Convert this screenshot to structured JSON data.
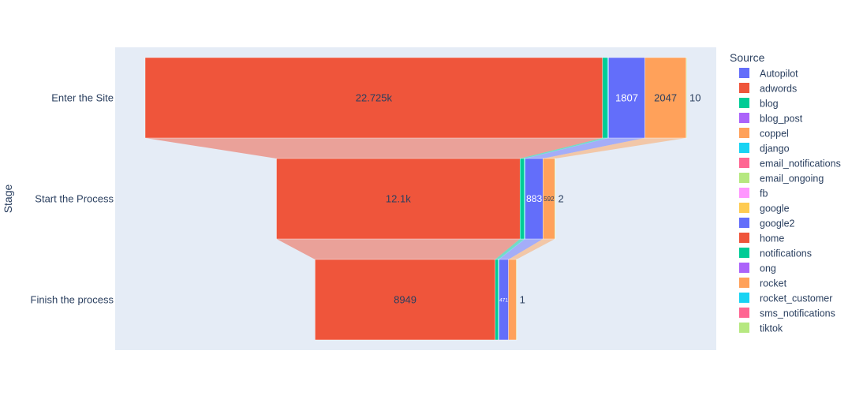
{
  "chart_data": {
    "type": "funnel",
    "title": "",
    "ylabel": "Stage",
    "stages": [
      "Enter the Site",
      "Start the Process",
      "Finish the process"
    ],
    "legend": {
      "title": "Source",
      "placement": "right",
      "entries": [
        {
          "name": "Autopilot",
          "color": "#636efa"
        },
        {
          "name": "adwords",
          "color": "#EF553B"
        },
        {
          "name": "blog",
          "color": "#00cc96"
        },
        {
          "name": "blog_post",
          "color": "#ab63fa"
        },
        {
          "name": "coppel",
          "color": "#FFA15A"
        },
        {
          "name": "django",
          "color": "#19d3f3"
        },
        {
          "name": "email_notifications",
          "color": "#FF6692"
        },
        {
          "name": "email_ongoing",
          "color": "#B6E880"
        },
        {
          "name": "fb",
          "color": "#FF97FF"
        },
        {
          "name": "google",
          "color": "#FECB52"
        },
        {
          "name": "google2",
          "color": "#636efa"
        },
        {
          "name": "home",
          "color": "#EF553B"
        },
        {
          "name": "notifications",
          "color": "#00cc96"
        },
        {
          "name": "ong",
          "color": "#ab63fa"
        },
        {
          "name": "rocket",
          "color": "#FFA15A"
        },
        {
          "name": "rocket_customer",
          "color": "#19d3f3"
        },
        {
          "name": "sms_notifications",
          "color": "#FF6692"
        },
        {
          "name": "tiktok",
          "color": "#B6E880"
        }
      ]
    },
    "series": [
      {
        "name": "home",
        "color": "#EF553B",
        "values": [
          22725,
          12100,
          8949
        ],
        "labels": [
          "22.725k",
          "12.1k",
          "8949"
        ],
        "label_color": "#2a3f5f"
      },
      {
        "name": "notifications",
        "color": "#00cc96",
        "values": [
          250,
          220,
          160
        ],
        "labels": [
          "",
          "",
          ""
        ],
        "label_color": "#2a3f5f"
      },
      {
        "name": "rocket_customer",
        "color": "#19d3f3",
        "values": [
          50,
          40,
          30
        ],
        "labels": [
          "",
          "",
          ""
        ],
        "label_color": "#2a3f5f"
      },
      {
        "name": "google2",
        "color": "#636efa",
        "values": [
          1807,
          883,
          471
        ],
        "labels": [
          "1807",
          "883",
          "471"
        ],
        "label_color": "#ffffff"
      },
      {
        "name": "rocket",
        "color": "#FFA15A",
        "values": [
          2047,
          592,
          392
        ],
        "labels": [
          "2047",
          "592",
          ""
        ],
        "label_color": "#2a3f5f"
      },
      {
        "name": "tiktok",
        "color": "#B6E880",
        "values": [
          10,
          2,
          1
        ],
        "labels": [
          "10",
          "2",
          "1"
        ],
        "label_color": "#2a3f5f"
      }
    ]
  }
}
